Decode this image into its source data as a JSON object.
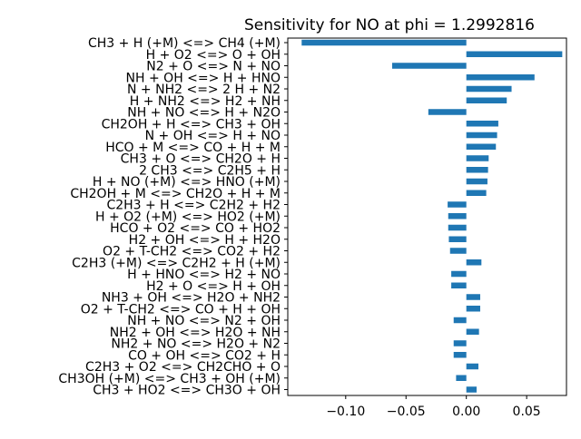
{
  "chart_data": {
    "type": "bar",
    "orientation": "horizontal",
    "title": "Sensitivity for NO at phi = 1.2992816",
    "xlabel": "",
    "ylabel": "",
    "xlim": [
      -0.148,
      0.083
    ],
    "xticks": [
      -0.1,
      -0.05,
      0.0,
      0.05
    ],
    "xtick_labels": [
      "−0.10",
      "−0.05",
      "0.00",
      "0.05"
    ],
    "grid": false,
    "bar_color": "#1f77b4",
    "categories": [
      "CH3 + H (+M) <=> CH4 (+M)",
      "H + O2 <=> O + OH",
      "N2 + O <=> N + NO",
      "NH + OH <=> H + HNO",
      "N + NH2 <=> 2 H + N2",
      "H + NH2 <=> H2 + NH",
      "NH + NO <=> H + N2O",
      "CH2OH + H <=> CH3 + OH",
      "N + OH <=> H + NO",
      "HCO + M <=> CO + H + M",
      "CH3 + O <=> CH2O + H",
      "2 CH3 <=> C2H5 + H",
      "H + NO (+M) <=> HNO (+M)",
      "CH2OH + M <=> CH2O + H + M",
      "C2H3 + H <=> C2H2 + H2",
      "H + O2 (+M) <=> HO2 (+M)",
      "HCO + O2 <=> CO + HO2",
      "H2 + OH <=> H + H2O",
      "O2 + T-CH2 <=> CO2 + H2",
      "C2H3 (+M) <=> C2H2 + H (+M)",
      "H + HNO <=> H2 + NO",
      "H2 + O <=> H + OH",
      "NH3 + OH <=> H2O + NH2",
      "O2 + T-CH2 <=> CO + H + OH",
      "NH + NO <=> N2 + OH",
      "NH2 + OH <=> H2O + NH",
      "NH2 + NO <=> H2O + N2",
      "CO + OH <=> CO2 + H",
      "C2H3 + O2 <=> CH2CHO + O",
      "CH3OH (+M) <=> CH3 + OH (+M)",
      "CH3 + HO2 <=> CH3O + OH"
    ],
    "values": [
      -0.1365,
      0.0795,
      -0.0615,
      0.0565,
      0.0375,
      0.0335,
      -0.0315,
      0.0265,
      0.0255,
      0.0245,
      0.0185,
      0.018,
      0.0175,
      0.0165,
      -0.0155,
      -0.015,
      -0.015,
      -0.0145,
      -0.0135,
      0.0125,
      -0.0125,
      -0.0125,
      0.0115,
      0.0115,
      -0.0105,
      0.0105,
      -0.0105,
      -0.0105,
      0.01,
      -0.0085,
      0.0085
    ]
  }
}
